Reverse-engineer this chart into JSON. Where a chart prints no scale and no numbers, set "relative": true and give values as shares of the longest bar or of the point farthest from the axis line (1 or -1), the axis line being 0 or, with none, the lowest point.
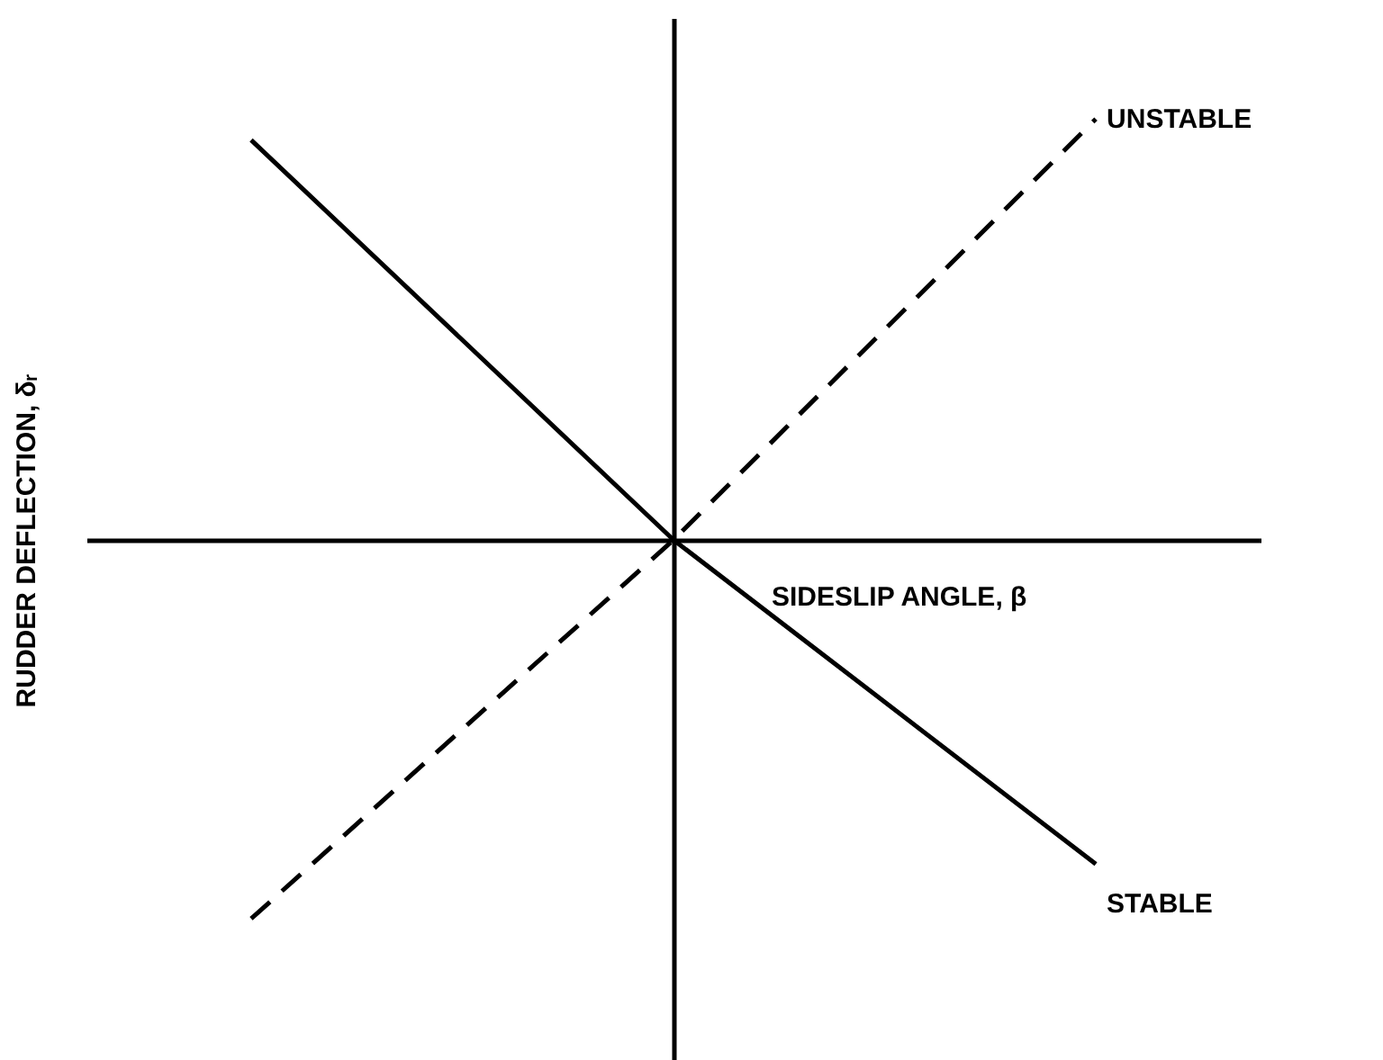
{
  "chart_data": {
    "type": "line",
    "xlabel": "SIDESLIP ANGLE, β",
    "ylabel": "RUDDER DEFLECTION, δᵣ",
    "categories": [
      null,
      null,
      null
    ],
    "relative": true,
    "grid": false,
    "legend": false,
    "marker": "none",
    "series": [
      {
        "name": "STABLE",
        "color": "#000000",
        "line_style": "solid",
        "values": [
          0.95,
          0,
          -0.77
        ]
      },
      {
        "name": "UNSTABLE",
        "color": "#000000",
        "line_style": "dashed",
        "values": [
          -0.9,
          0,
          1
        ]
      }
    ]
  }
}
